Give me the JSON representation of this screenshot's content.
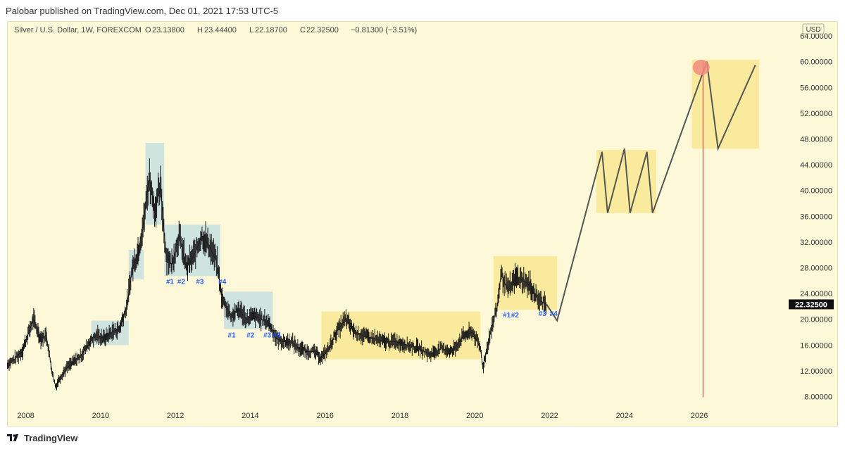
{
  "header": {
    "published_line": "Palobar published on TradingView.com, Dec 01, 2021 17:53 UTC-5"
  },
  "footer": {
    "brand": "TradingView",
    "logo_icon": "tradingview-logo-icon"
  },
  "colors": {
    "background": "#fdf8d8",
    "candles": "#1a1a1a",
    "blue_boxes": "#a9d1e6",
    "yellow_boxes": "#f8e68a",
    "projection_line": "#555555",
    "vertical_line": "#d9534f",
    "peak_marker": "#f28b82",
    "label_blue": "#2962ff"
  },
  "chart_data": {
    "type": "line",
    "legend": {
      "symbol": "Silver / U.S. Dollar, 1W, FOREXCOM",
      "o_label": "O",
      "o_value": "23.13800",
      "h_label": "H",
      "h_value": "23.44400",
      "l_label": "L",
      "l_value": "22.18700",
      "c_label": "C",
      "c_value": "22.32500",
      "change": "−0.81300 (−3.51%)"
    },
    "currency": "USD",
    "last_price": "22.32500",
    "x_ticks": [
      "2008",
      "2010",
      "2012",
      "2014",
      "2016",
      "2018",
      "2020",
      "2022",
      "2024",
      "2026"
    ],
    "x_tick_values": [
      2008,
      2010,
      2012,
      2014,
      2016,
      2018,
      2020,
      2022,
      2024,
      2026
    ],
    "xlim": [
      2007.5,
      2028.2
    ],
    "y_ticks": [
      "8.00000",
      "12.00000",
      "16.00000",
      "20.00000",
      "24.00000",
      "28.00000",
      "32.00000",
      "36.00000",
      "40.00000",
      "44.00000",
      "48.00000",
      "52.00000",
      "56.00000",
      "60.00000",
      "64.00000"
    ],
    "y_tick_values": [
      8,
      12,
      16,
      20,
      24,
      28,
      32,
      36,
      40,
      44,
      48,
      52,
      56,
      60,
      64
    ],
    "ylim": [
      6.2,
      66.3
    ],
    "price_series": {
      "x": [
        2007.5,
        2007.7,
        2007.9,
        2008.05,
        2008.2,
        2008.4,
        2008.55,
        2008.7,
        2008.8,
        2008.9,
        2009.1,
        2009.3,
        2009.5,
        2009.7,
        2009.9,
        2010.1,
        2010.3,
        2010.5,
        2010.7,
        2010.85,
        2011.0,
        2011.15,
        2011.3,
        2011.45,
        2011.6,
        2011.75,
        2011.9,
        2012.1,
        2012.3,
        2012.5,
        2012.7,
        2012.9,
        2013.1,
        2013.25,
        2013.5,
        2013.7,
        2013.9,
        2014.1,
        2014.3,
        2014.5,
        2014.7,
        2014.9,
        2015.1,
        2015.3,
        2015.5,
        2015.7,
        2015.9,
        2016.1,
        2016.3,
        2016.55,
        2016.8,
        2017.0,
        2017.3,
        2017.6,
        2017.9,
        2018.2,
        2018.5,
        2018.8,
        2019.1,
        2019.4,
        2019.7,
        2019.95,
        2020.15,
        2020.22,
        2020.4,
        2020.6,
        2020.7,
        2020.9,
        2021.1,
        2021.3,
        2021.5,
        2021.7,
        2021.92
      ],
      "close": [
        13.0,
        13.8,
        15.0,
        17.5,
        20.0,
        17.0,
        17.5,
        12.0,
        9.5,
        10.8,
        12.5,
        13.5,
        14.5,
        16.5,
        17.5,
        17.0,
        18.0,
        18.5,
        22.0,
        28.0,
        30.5,
        35.0,
        42.0,
        37.0,
        40.5,
        30.0,
        28.5,
        33.0,
        28.0,
        30.0,
        33.0,
        31.5,
        29.0,
        23.0,
        20.5,
        21.5,
        20.0,
        20.5,
        20.0,
        19.5,
        17.0,
        16.5,
        16.5,
        15.5,
        15.0,
        15.0,
        14.0,
        15.5,
        18.0,
        20.0,
        18.0,
        17.5,
        17.0,
        16.5,
        16.5,
        16.0,
        15.5,
        14.5,
        15.5,
        15.0,
        17.5,
        18.0,
        15.5,
        12.5,
        17.5,
        22.0,
        27.0,
        24.5,
        26.5,
        26.0,
        25.0,
        23.0,
        22.3
      ]
    },
    "projection": {
      "x": [
        2021.92,
        2022.2,
        2023.4,
        2023.55,
        2024.0,
        2024.15,
        2024.6,
        2024.75,
        2026.2,
        2026.5,
        2027.5
      ],
      "y": [
        22.3,
        19.8,
        46.0,
        36.5,
        46.5,
        36.5,
        46.0,
        36.5,
        60.0,
        46.5,
        59.5
      ]
    },
    "blue_boxes": [
      {
        "x0": 2009.75,
        "x1": 2010.75,
        "y0": 16.0,
        "y1": 19.8
      },
      {
        "x0": 2010.75,
        "x1": 2011.15,
        "y0": 26.2,
        "y1": 30.8
      },
      {
        "x0": 2011.2,
        "x1": 2011.7,
        "y0": 34.7,
        "y1": 47.4
      },
      {
        "x0": 2011.7,
        "x1": 2013.2,
        "y0": 26.7,
        "y1": 34.7
      },
      {
        "x0": 2013.3,
        "x1": 2014.6,
        "y0": 18.5,
        "y1": 24.3
      }
    ],
    "yellow_boxes": [
      {
        "x0": 2015.9,
        "x1": 2020.15,
        "y0": 13.8,
        "y1": 21.2
      },
      {
        "x0": 2020.5,
        "x1": 2022.2,
        "y0": 21.5,
        "y1": 29.8
      },
      {
        "x0": 2023.25,
        "x1": 2024.85,
        "y0": 36.5,
        "y1": 46.3
      },
      {
        "x0": 2025.8,
        "x1": 2027.6,
        "y0": 46.5,
        "y1": 60.3
      }
    ],
    "markers": [
      {
        "text": "#1",
        "x": 2011.75,
        "y": 25.5
      },
      {
        "text": "#2",
        "x": 2012.05,
        "y": 25.5
      },
      {
        "text": "#3",
        "x": 2012.55,
        "y": 25.5
      },
      {
        "text": "#4",
        "x": 2013.15,
        "y": 25.5
      },
      {
        "text": "#1",
        "x": 2013.4,
        "y": 17.2
      },
      {
        "text": "#2",
        "x": 2013.9,
        "y": 17.2
      },
      {
        "text": "#3",
        "x": 2014.35,
        "y": 17.2
      },
      {
        "text": "#4",
        "x": 2014.6,
        "y": 17.2
      },
      {
        "text": "#1",
        "x": 2020.75,
        "y": 20.3
      },
      {
        "text": "#2",
        "x": 2020.97,
        "y": 20.3
      },
      {
        "text": "#3",
        "x": 2021.7,
        "y": 20.5
      },
      {
        "text": "#4",
        "x": 2022.0,
        "y": 20.5
      }
    ],
    "peak_marker": {
      "x": 2026.05,
      "y": 59.1
    },
    "vertical_line": {
      "x": 2026.1,
      "y0": 7.9,
      "y1": 60.0
    },
    "grid": false
  }
}
